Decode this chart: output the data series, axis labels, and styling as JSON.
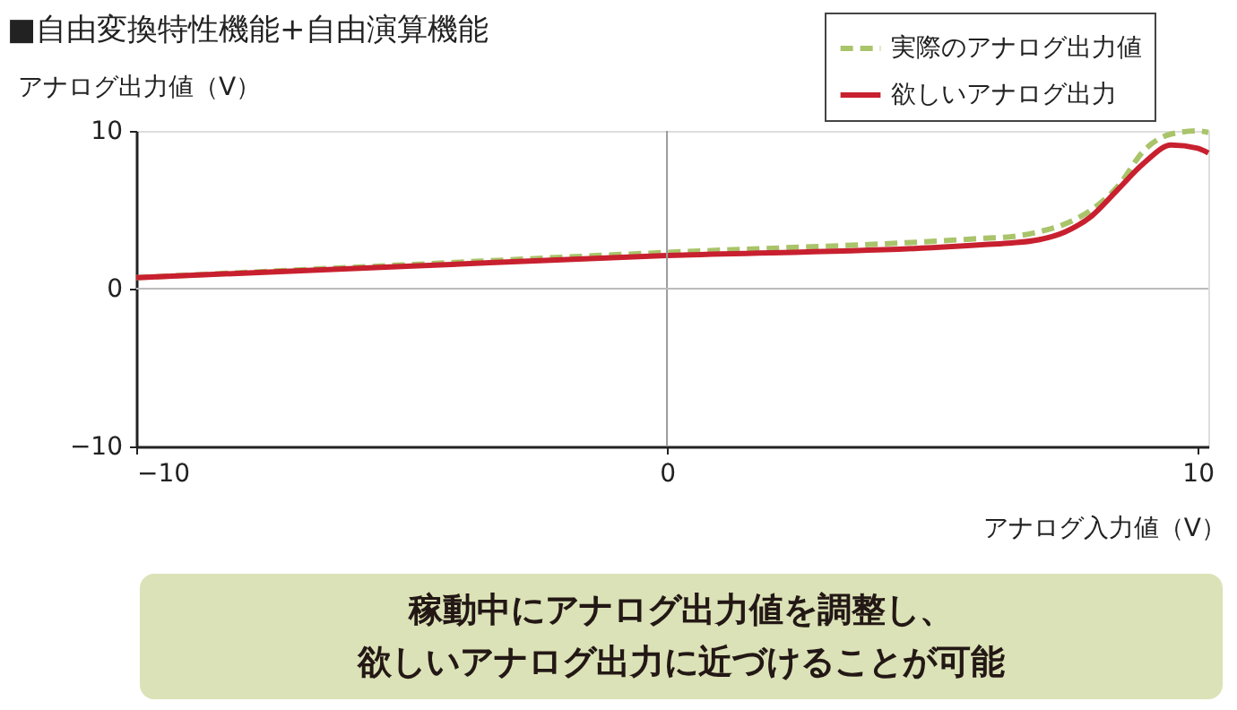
{
  "chart_data": {
    "type": "line",
    "title": "■自由変換特性機能+自由演算機能",
    "xlabel": "アナログ入力値（V）",
    "ylabel": "アナログ出力値（V）",
    "x": [
      -10,
      -5,
      0,
      5,
      6,
      6.5,
      7,
      7.5,
      8,
      8.5,
      9,
      9.5,
      10,
      10.2
    ],
    "series": [
      {
        "name": "実際のアナログ出力値",
        "color": "#a9c46a",
        "line_style": "dashed",
        "values": [
          0.7,
          1.5,
          2.3,
          3.0,
          3.2,
          3.3,
          3.6,
          4.1,
          5.0,
          6.5,
          8.8,
          9.8,
          10,
          9.9
        ]
      },
      {
        "name": "欲しいアナログ出力",
        "color": "#c8202f",
        "line_style": "solid",
        "values": [
          0.7,
          1.4,
          2.1,
          2.6,
          2.8,
          2.9,
          3.1,
          3.6,
          4.6,
          6.3,
          8.0,
          9.1,
          8.9,
          8.6
        ]
      }
    ],
    "xlim": [
      -10,
      10.2
    ],
    "ylim": [
      -10,
      10
    ],
    "xticks": [
      -10,
      0,
      10
    ],
    "yticks": [
      -10,
      0,
      10
    ],
    "grid": false,
    "legend": "top right",
    "marker": "none",
    "ref_lines": [
      {
        "axis": "x",
        "value": 0,
        "color": "#9a9a9a"
      },
      {
        "axis": "y",
        "value": 0,
        "color": "#bbbbbb"
      }
    ],
    "annotations": [
      "稼動中にアナログ出力値を調整し、",
      "欲しいアナログ出力に近づけることが可能"
    ]
  }
}
